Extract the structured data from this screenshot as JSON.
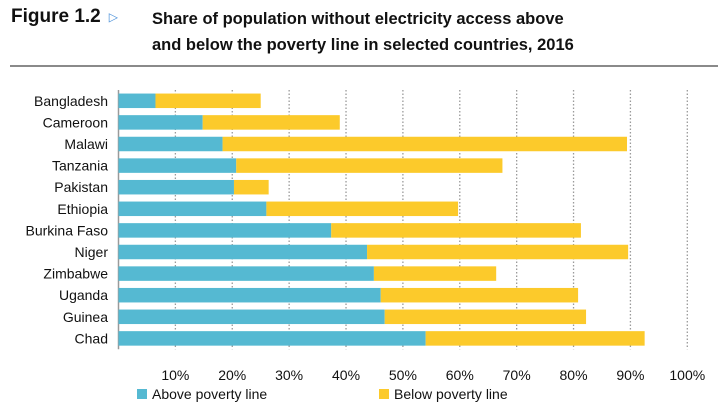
{
  "figure_label": "Figure 1.2",
  "title_line1": "Share of population without electricity access above",
  "title_line2": "and below the poverty line in selected countries, 2016",
  "chart_data": {
    "type": "bar",
    "orientation": "horizontal",
    "stacked": true,
    "title": "Share of population without electricity access above and below the poverty line in selected countries, 2016",
    "categories": [
      "Bangladesh",
      "Cameroon",
      "Malawi",
      "Tanzania",
      "Pakistan",
      "Ethiopia",
      "Burkina Faso",
      "Niger",
      "Zimbabwe",
      "Uganda",
      "Guinea",
      "Chad"
    ],
    "series": [
      {
        "name": "Above poverty line",
        "color": "#55b9d2",
        "values": [
          6.5,
          14.8,
          18.3,
          20.7,
          20.3,
          26.0,
          37.4,
          43.7,
          44.9,
          46.1,
          46.8,
          54.0
        ]
      },
      {
        "name": "Below poverty line",
        "color": "#fcca2b",
        "values": [
          18.5,
          24.1,
          71.1,
          46.8,
          6.1,
          33.7,
          43.9,
          45.9,
          21.5,
          34.7,
          35.4,
          38.5
        ]
      }
    ],
    "xlim": [
      0,
      100
    ],
    "x_ticks": [
      "10%",
      "20%",
      "30%",
      "40%",
      "50%",
      "60%",
      "70%",
      "80%",
      "90%",
      "100%"
    ],
    "grid": "vertical dotted",
    "legend": "bottom"
  }
}
